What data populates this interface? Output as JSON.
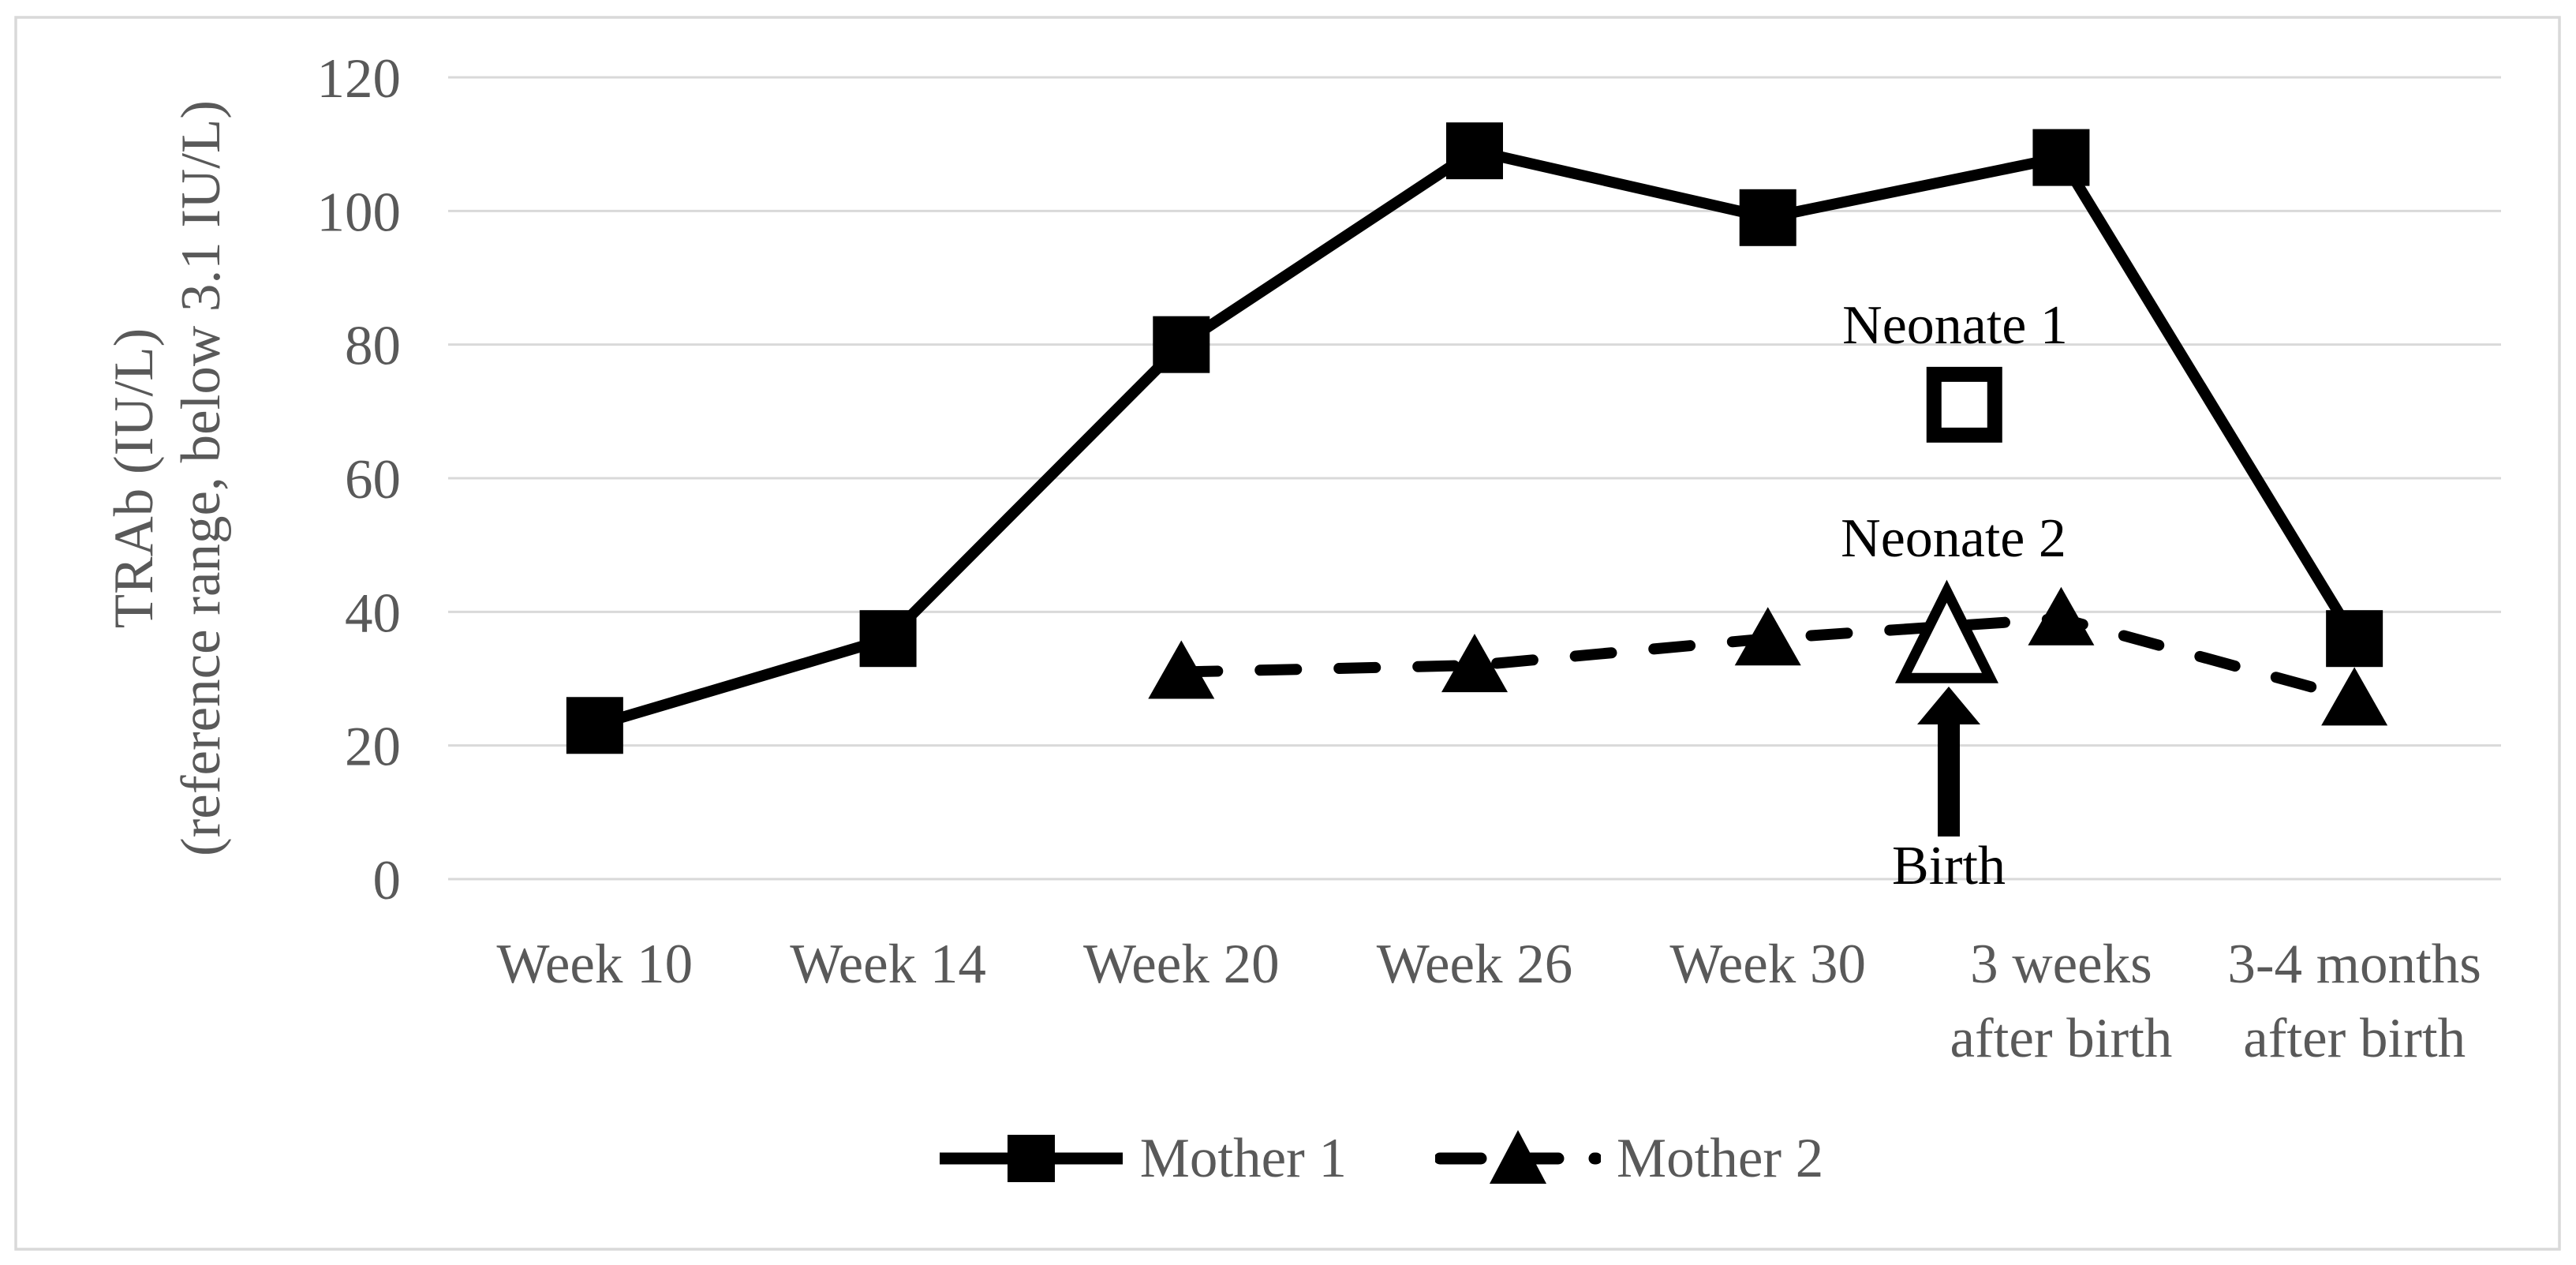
{
  "figure": {
    "background": "#ffffff",
    "border_color": "#d9d9d9"
  },
  "colors": {
    "series": "#000000",
    "axis_text": "#595959",
    "annotation_text": "#000000",
    "gridline": "#d9d9d9"
  },
  "y_axis": {
    "title_line1": "TRAb (IU/L)",
    "title_line2": "(reference range, below 3.1 IU/L)",
    "ticks": [
      0,
      20,
      40,
      60,
      80,
      100,
      120
    ]
  },
  "legend": {
    "items": [
      {
        "label": "Mother 1",
        "marker": "filled-square-solid-line"
      },
      {
        "label": "Mother 2",
        "marker": "filled-triangle-dashed-line"
      }
    ]
  },
  "chart_data": {
    "type": "line",
    "title": "",
    "xlabel": "",
    "ylabel": "TRAb (IU/L) (reference range, below 3.1 IU/L)",
    "ylim": [
      0,
      120
    ],
    "ytick_step": 20,
    "grid": true,
    "legend_position": "bottom",
    "categories": [
      [
        "Week 10"
      ],
      [
        "Week 14"
      ],
      [
        "Week 20"
      ],
      [
        "Week 26"
      ],
      [
        "Week 30"
      ],
      [
        "3 weeks",
        "after birth"
      ],
      [
        "3-4 months",
        "after birth"
      ]
    ],
    "series": [
      {
        "name": "Mother 1",
        "line": "solid",
        "marker": "filled-square",
        "color": "#000000",
        "values": [
          23,
          36,
          80,
          109,
          99,
          108,
          36
        ]
      },
      {
        "name": "Mother 2",
        "line": "dashed",
        "marker": "filled-triangle",
        "color": "#000000",
        "values": [
          null,
          null,
          31,
          32,
          36,
          39,
          27
        ]
      }
    ],
    "scatter_points": [
      {
        "name": "Neonate 1",
        "marker": "open-square",
        "at": "birth",
        "x_index": 4.67,
        "value": 71
      },
      {
        "name": "Neonate 2",
        "marker": "open-triangle",
        "at": "birth",
        "x_index": 4.61,
        "value": 36
      }
    ],
    "annotations": [
      {
        "id": "neonate-1-label",
        "text": "Neonate 1"
      },
      {
        "id": "neonate-2-label",
        "text": "Neonate 2"
      },
      {
        "id": "birth-label",
        "text": "Birth",
        "arrow": "up"
      }
    ]
  }
}
